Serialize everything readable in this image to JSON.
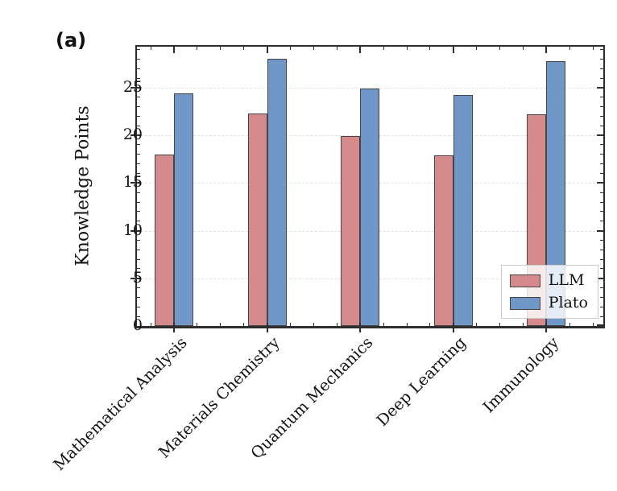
{
  "figure": {
    "panel_label": "(a)",
    "background": "#ffffff",
    "spine_color": "#2e2e2e",
    "grid_color": "#e2e2e2",
    "edge_color": "#454545"
  },
  "chart_data": {
    "type": "bar",
    "title": "",
    "xlabel": "",
    "ylabel": "Knowledge Points",
    "categories": [
      "Mathematical Analysis",
      "Materials Chemistry",
      "Quantum Mechanics",
      "Deep Learning",
      "Immunology"
    ],
    "series": [
      {
        "name": "LLM",
        "color": "#d48a8b",
        "values": [
          18.0,
          22.3,
          19.9,
          17.9,
          22.2
        ]
      },
      {
        "name": "Plato",
        "color": "#6f98c8",
        "values": [
          24.4,
          28.0,
          24.9,
          24.2,
          27.8
        ]
      }
    ],
    "ylim": [
      0,
      29.3
    ],
    "yticks": [
      0,
      5,
      10,
      15,
      20,
      25
    ],
    "y_minor_step": 1,
    "grid": "horizontal-dashed",
    "legend_position": "lower right",
    "tick_direction": "in",
    "bar_edge_color": "#454545"
  }
}
